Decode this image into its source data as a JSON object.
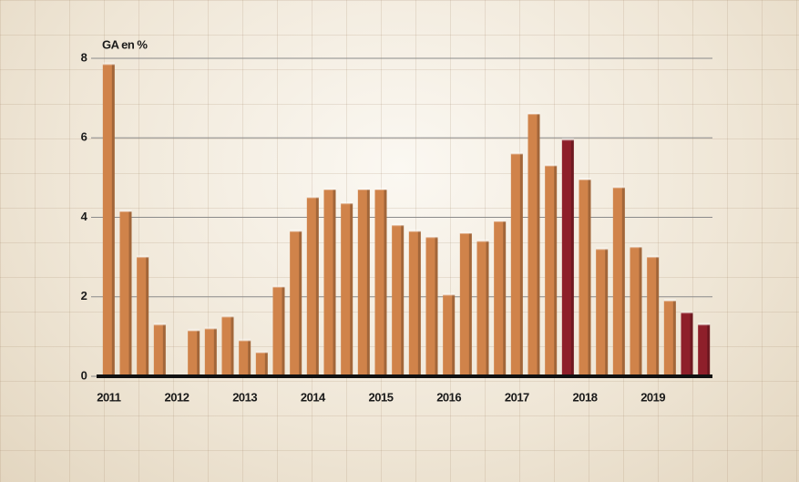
{
  "chart_data": {
    "type": "bar",
    "y_axis_title": "GA en %",
    "categories": [
      "2011",
      null,
      null,
      null,
      "2012",
      null,
      null,
      null,
      "2013",
      null,
      null,
      null,
      "2014",
      null,
      null,
      null,
      "2015",
      null,
      null,
      null,
      "2016",
      null,
      null,
      null,
      "2017",
      null,
      null,
      null,
      "2018",
      null,
      null,
      null,
      "2019",
      null,
      null,
      null
    ],
    "values": [
      7.85,
      4.15,
      3.0,
      1.3,
      null,
      1.15,
      1.2,
      1.5,
      0.9,
      0.6,
      2.25,
      3.65,
      4.5,
      4.7,
      4.35,
      4.7,
      4.7,
      3.8,
      3.65,
      3.5,
      2.05,
      3.6,
      3.4,
      3.9,
      5.6,
      6.6,
      5.3,
      5.95,
      4.95,
      3.2,
      4.75,
      3.25,
      3.0,
      1.9,
      1.6,
      1.3
    ],
    "colors": [
      "#d0834a",
      "#d0834a",
      "#d0834a",
      "#d0834a",
      "#d0834a",
      "#d0834a",
      "#d0834a",
      "#d0834a",
      "#d0834a",
      "#d0834a",
      "#d0834a",
      "#d0834a",
      "#d0834a",
      "#d0834a",
      "#d0834a",
      "#d0834a",
      "#d0834a",
      "#d0834a",
      "#d0834a",
      "#d0834a",
      "#d0834a",
      "#d0834a",
      "#d0834a",
      "#d0834a",
      "#d0834a",
      "#d0834a",
      "#d0834a",
      "#8e1f2a",
      "#d0834a",
      "#d0834a",
      "#d0834a",
      "#d0834a",
      "#d0834a",
      "#d0834a",
      "#8e1f2a",
      "#8e1f2a"
    ],
    "ylim": [
      0,
      8
    ],
    "yticks": [
      0,
      2,
      4,
      6,
      8
    ],
    "grid": true
  }
}
